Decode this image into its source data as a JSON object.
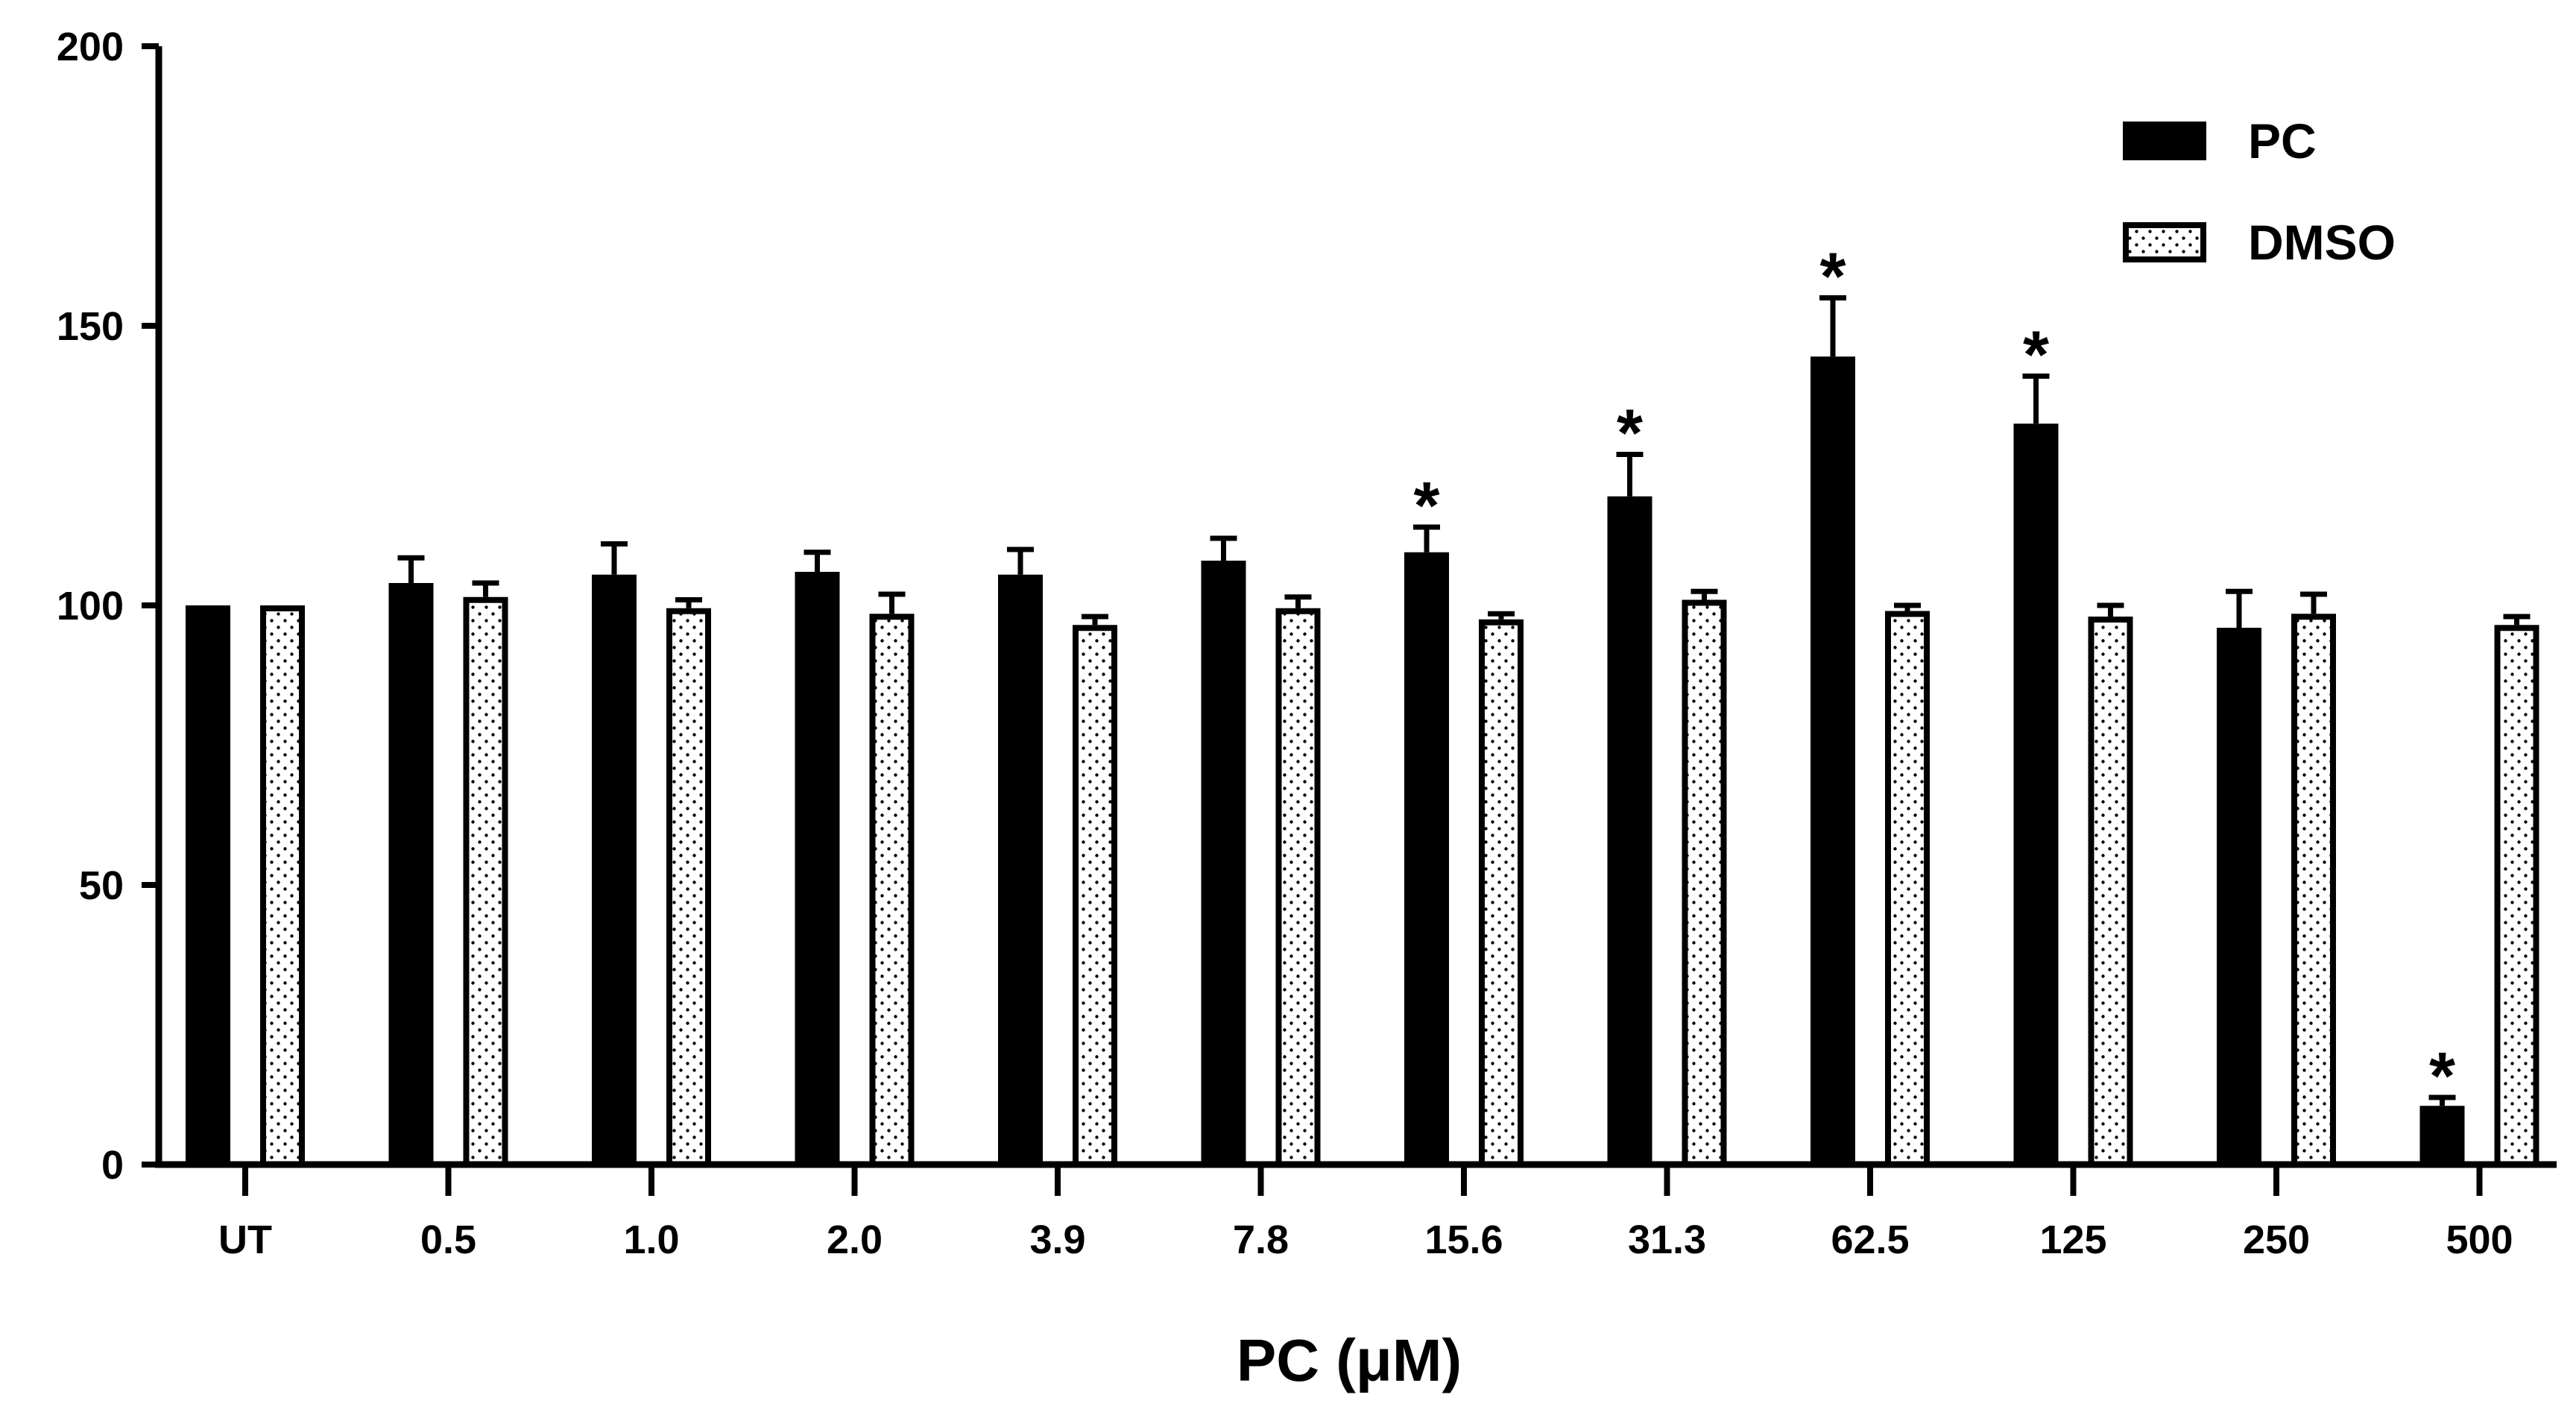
{
  "chart_data": {
    "type": "bar",
    "categories": [
      "UT",
      "0.5",
      "1.0",
      "2.0",
      "3.9",
      "7.8",
      "15.6",
      "31.3",
      "62.5",
      "125",
      "250",
      "500"
    ],
    "series": [
      {
        "name": "PC",
        "values": [
          100,
          104,
          105.5,
          106,
          105.5,
          108,
          109.5,
          119.5,
          144.5,
          132.5,
          96,
          10.5
        ],
        "errors": [
          0,
          4.5,
          5.5,
          3.5,
          4.5,
          4,
          4.5,
          7.5,
          10.5,
          8.5,
          6.5,
          1.5
        ],
        "significant": [
          false,
          false,
          false,
          false,
          false,
          false,
          true,
          true,
          true,
          true,
          false,
          true
        ],
        "color": "#000000",
        "fill": "solid"
      },
      {
        "name": "DMSO",
        "values": [
          100,
          101.5,
          99.5,
          98.5,
          96.5,
          99.5,
          97.5,
          101,
          99,
          98,
          98.5,
          96.5
        ],
        "errors": [
          0,
          2.5,
          1.5,
          3.5,
          1.5,
          2,
          1,
          1.5,
          1,
          2,
          3.5,
          1.5
        ],
        "significant": [
          false,
          false,
          false,
          false,
          false,
          false,
          false,
          false,
          false,
          false,
          false,
          false
        ],
        "color": "#000000",
        "fill": "dotted"
      }
    ],
    "title": "",
    "xlabel": "PC (μM)",
    "ylabel": "",
    "ylim": [
      0,
      200
    ],
    "yticks": [
      "0",
      "50",
      "100",
      "150",
      "200"
    ],
    "significance_marker": "*",
    "grid": false,
    "legend_position": "top-right"
  }
}
